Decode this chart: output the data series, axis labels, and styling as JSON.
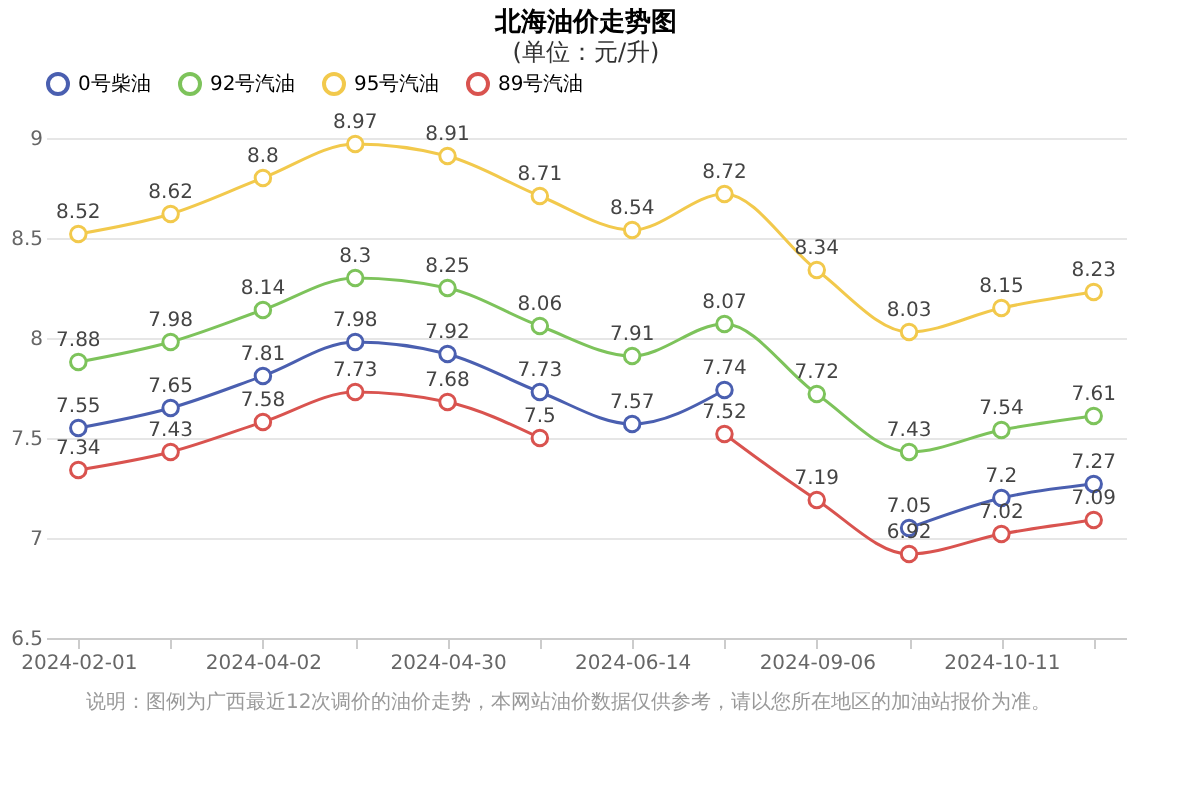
{
  "chart_data": {
    "type": "line",
    "title": "北海油价走势图",
    "subtitle": "(单位：元/升)",
    "categories": [
      "2024-02-01",
      null,
      "2024-04-02",
      null,
      "2024-04-30",
      null,
      "2024-06-14",
      null,
      "2024-09-06",
      null,
      "2024-10-11",
      null
    ],
    "series": [
      {
        "name": "0号柴油",
        "color": "#4a5fb0",
        "values": [
          7.55,
          7.65,
          7.81,
          7.98,
          7.92,
          7.73,
          7.57,
          7.74,
          null,
          7.05,
          7.2,
          7.27
        ]
      },
      {
        "name": "92号汽油",
        "color": "#7dc35b",
        "values": [
          7.88,
          7.98,
          8.14,
          8.3,
          8.25,
          8.06,
          7.91,
          8.07,
          7.72,
          7.43,
          7.54,
          7.61
        ]
      },
      {
        "name": "95号汽油",
        "color": "#f2c94c",
        "values": [
          8.52,
          8.62,
          8.8,
          8.97,
          8.91,
          8.71,
          8.54,
          8.72,
          8.34,
          8.03,
          8.15,
          8.23
        ]
      },
      {
        "name": "89号汽油",
        "color": "#d9534f",
        "values": [
          7.34,
          7.43,
          7.58,
          7.73,
          7.68,
          7.5,
          null,
          7.52,
          7.19,
          6.92,
          7.02,
          7.09
        ]
      }
    ],
    "ylim": [
      6.5,
      9
    ],
    "yticks": [
      6.5,
      7,
      7.5,
      8,
      8.5,
      9
    ],
    "grid": "y",
    "legend": "top",
    "marker": "circle",
    "line_style": "solid",
    "data_labels": true,
    "annotations": [
      "说明：图例为广西最近12次调价的油价走势，本网站油价数据仅供参考，请以您所在地区的加油站报价为准。"
    ]
  }
}
